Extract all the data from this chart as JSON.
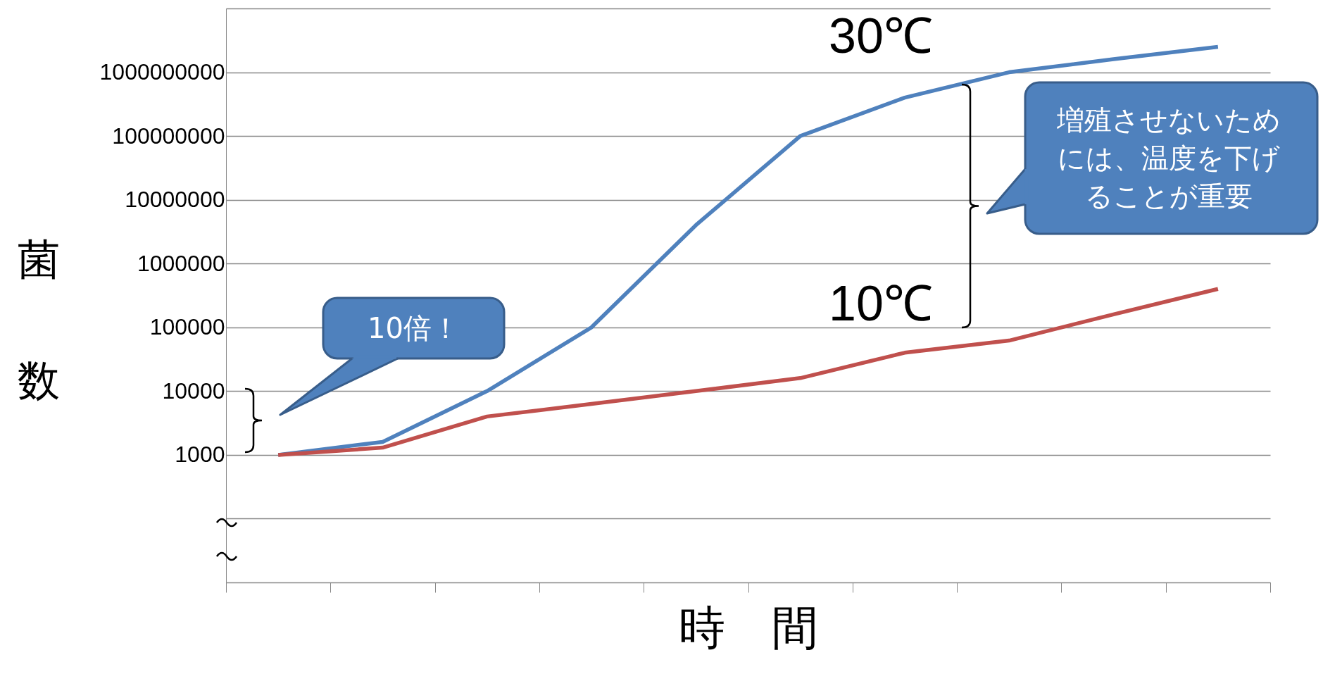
{
  "chart_data": {
    "type": "line",
    "xlabel": "時　間",
    "ylabel": "菌数",
    "categories": [
      null,
      null,
      null,
      null,
      null,
      null,
      null,
      null,
      null,
      null
    ],
    "series": [
      {
        "name": "30℃",
        "color": "#4f81bd",
        "values": [
          1000,
          1600,
          10000,
          100000,
          4000000,
          100000000,
          400000000,
          1000000000,
          1600000000,
          2500000000
        ]
      },
      {
        "name": "10℃",
        "color": "#c0504d",
        "values": [
          1000,
          1300,
          4000,
          6300,
          10000,
          16000,
          40000,
          62000,
          160000,
          400000
        ]
      }
    ],
    "ylim": [
      10,
      10000000000
    ],
    "yticks": [
      {
        "value": 10,
        "label": null
      },
      {
        "value": 100,
        "label": null
      },
      1000,
      10000,
      100000,
      1000000,
      10000000,
      100000000,
      1000000000,
      {
        "value": 10000000000,
        "label": null
      }
    ],
    "log": true,
    "grid": "y",
    "tick_labels": "y",
    "marker": "none",
    "line_style": "solid",
    "annotations": [
      "10倍！",
      "増殖させないためには、温度を下げることが重要"
    ]
  }
}
